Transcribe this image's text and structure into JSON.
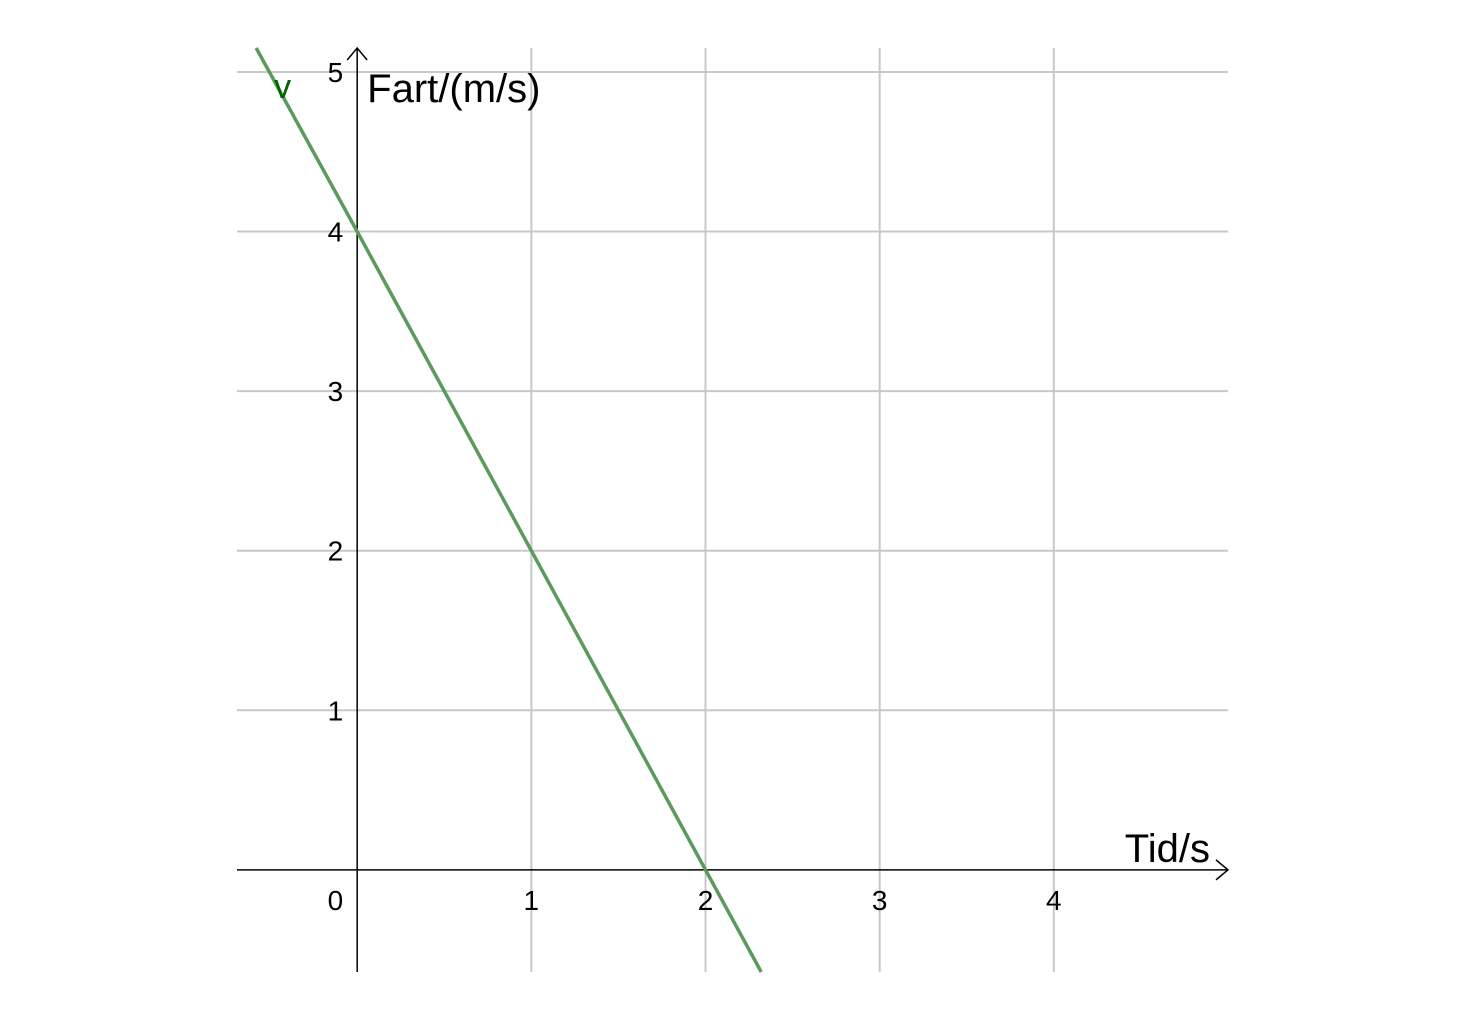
{
  "chart_data": {
    "type": "line",
    "title": "",
    "xlabel": "Tid/s",
    "ylabel": "Fart/(m/s)",
    "xlim": [
      -0.69,
      5.0
    ],
    "ylim": [
      -0.64,
      5.15
    ],
    "grid": true,
    "x_ticks": [
      1,
      2,
      3,
      4
    ],
    "x_tick_labels": [
      "1",
      "2",
      "3",
      "4"
    ],
    "y_ticks": [
      1,
      2,
      3,
      4,
      5
    ],
    "y_tick_labels": [
      "1",
      "2",
      "3",
      "4",
      "5"
    ],
    "origin_label": "0",
    "series": [
      {
        "name": "v",
        "color": "#5a9a5a",
        "label_color": "#006400",
        "x": [
          -0.58,
          0,
          1,
          2,
          2.32
        ],
        "y": [
          5.15,
          4,
          2,
          0,
          -0.64
        ]
      }
    ]
  }
}
